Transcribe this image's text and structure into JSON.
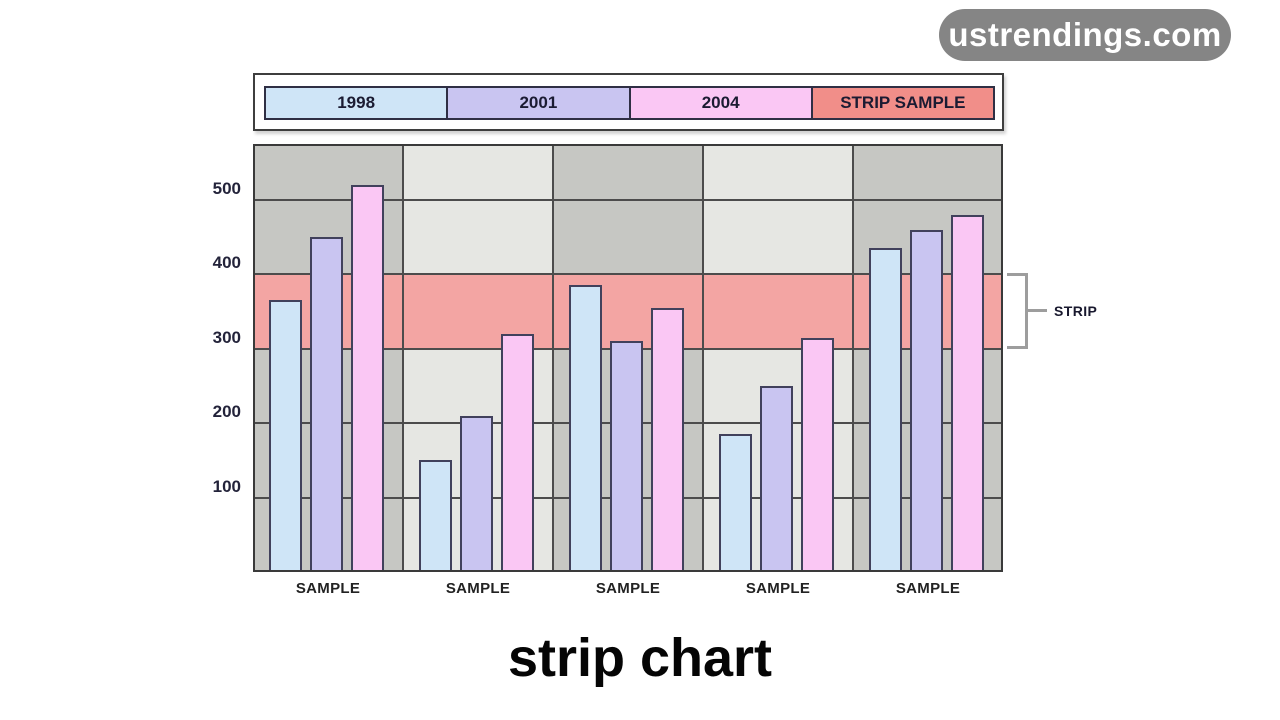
{
  "watermark": {
    "text": "ustrendings.com",
    "bg": "#858585",
    "text_color": "#ffffff"
  },
  "caption": {
    "text": "strip chart"
  },
  "chart_data": {
    "type": "bar",
    "title": "strip chart",
    "categories": [
      "SAMPLE",
      "SAMPLE",
      "SAMPLE",
      "SAMPLE",
      "SAMPLE"
    ],
    "series": [
      {
        "name": "1998",
        "color": "#cfe5f7",
        "values": [
          365,
          150,
          385,
          185,
          435
        ]
      },
      {
        "name": "2001",
        "color": "#c9c5f1",
        "values": [
          450,
          210,
          310,
          250,
          460
        ]
      },
      {
        "name": "2004",
        "color": "#fac7f4",
        "values": [
          520,
          320,
          355,
          315,
          480
        ]
      }
    ],
    "legend": [
      {
        "label": "1998",
        "color": "#cfe5f7"
      },
      {
        "label": "2001",
        "color": "#c9c5f1"
      },
      {
        "label": "2004",
        "color": "#fac7f4"
      },
      {
        "label": "STRIP SAMPLE",
        "color": "#f18e89"
      }
    ],
    "strip_band": {
      "label": "STRIP",
      "from": 300,
      "to": 400,
      "color": "#f3a5a3"
    },
    "y_ticks": [
      100,
      200,
      300,
      400,
      500
    ],
    "ylim": [
      0,
      575
    ],
    "xlabel": "",
    "ylabel": "",
    "legend_position": "top",
    "grid": "horizontal",
    "plot_band_colors": [
      "#c6c7c3",
      "#e6e7e3"
    ]
  }
}
